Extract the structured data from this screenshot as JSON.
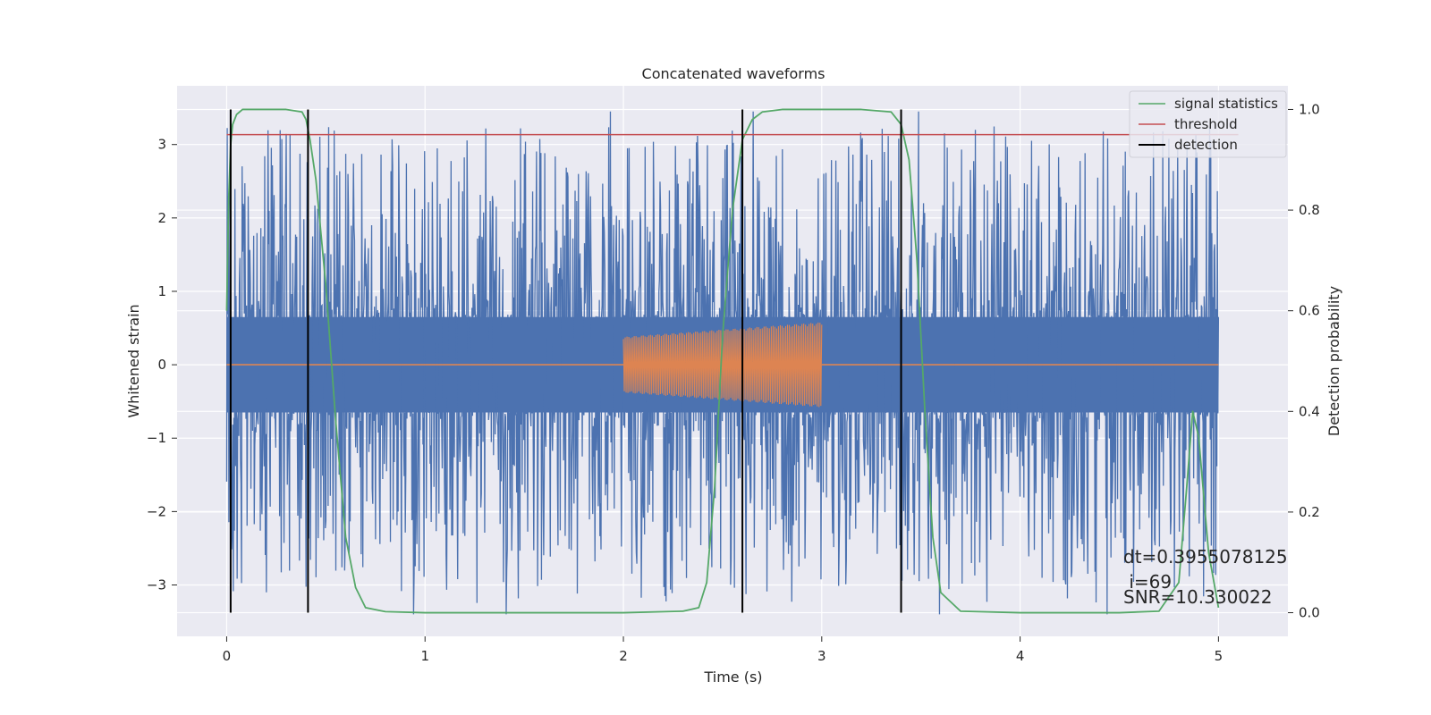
{
  "chart_data": {
    "type": "line",
    "title": "Concatenated waveforms",
    "xlabel": "Time (s)",
    "ylabel_left": "Whitened strain",
    "ylabel_right": "Detection probability",
    "xlim": [
      -0.25,
      5.35
    ],
    "ylim_left": [
      -3.7,
      3.8
    ],
    "ylim_right": [
      -0.047,
      1.047
    ],
    "x_ticks": [
      0,
      1,
      2,
      3,
      4,
      5
    ],
    "y_left_ticks": [
      -3,
      -2,
      -1,
      0,
      1,
      2,
      3
    ],
    "y_right_ticks": [
      0.0,
      0.2,
      0.4,
      0.6,
      0.8,
      1.0
    ],
    "grid": true,
    "legend_position": "top-right",
    "colors": {
      "strain": "#4c72b0",
      "injection": "#dd8452",
      "signal_statistics": "#55a868",
      "threshold": "#c44e52",
      "detection": "#000000",
      "plot_bg": "#eaeaf2",
      "grid": "#ffffff"
    },
    "series": [
      {
        "name": "signal statistics",
        "axis": "right",
        "x": [
          0.0,
          0.01,
          0.02,
          0.03,
          0.05,
          0.08,
          0.12,
          0.2,
          0.3,
          0.38,
          0.4,
          0.42,
          0.45,
          0.5,
          0.55,
          0.6,
          0.65,
          0.7,
          0.8,
          1.0,
          1.5,
          2.0,
          2.3,
          2.38,
          2.42,
          2.46,
          2.5,
          2.55,
          2.6,
          2.65,
          2.7,
          2.8,
          3.0,
          3.2,
          3.35,
          3.4,
          3.44,
          3.48,
          3.52,
          3.56,
          3.6,
          3.7,
          4.0,
          4.5,
          4.7,
          4.8,
          4.84,
          4.87,
          4.9,
          4.95,
          5.0
        ],
        "y": [
          0.6,
          0.82,
          0.93,
          0.97,
          0.99,
          1.0,
          1.0,
          1.0,
          1.0,
          0.995,
          0.98,
          0.94,
          0.86,
          0.65,
          0.38,
          0.15,
          0.05,
          0.01,
          0.002,
          0.0,
          0.0,
          0.0,
          0.003,
          0.01,
          0.06,
          0.25,
          0.55,
          0.8,
          0.94,
          0.98,
          0.995,
          1.0,
          1.0,
          1.0,
          0.995,
          0.97,
          0.9,
          0.7,
          0.4,
          0.15,
          0.04,
          0.003,
          0.0,
          0.0,
          0.003,
          0.06,
          0.25,
          0.4,
          0.35,
          0.12,
          0.01
        ]
      },
      {
        "name": "threshold",
        "axis": "right",
        "x": [
          0.0,
          5.1
        ],
        "y": [
          0.95,
          0.95
        ]
      },
      {
        "name": "detection",
        "axis": "right",
        "type": "vlines",
        "x": [
          0.02,
          0.41,
          2.6,
          3.4
        ],
        "ymin": 0.0,
        "ymax": 1.0
      },
      {
        "axis": "left",
        "kind": "noise",
        "x_range": [
          0.0,
          5.0
        ],
        "band_abs_max": 0.65,
        "peak_range": [
          -3.4,
          3.45
        ]
      },
      {
        "axis": "left",
        "kind": "chirp",
        "flat_ranges": [
          [
            0.0,
            2.0
          ],
          [
            3.0,
            5.0
          ]
        ],
        "chirp_x_range": [
          2.0,
          3.0
        ],
        "chirp_amplitude_start": 0.38,
        "chirp_amplitude_end": 0.58
      }
    ],
    "legend": [
      "signal statistics",
      "threshold",
      "detection"
    ],
    "annotations": [
      "dt=0.3955078125",
      " i=69",
      "SNR=10.330022"
    ]
  }
}
